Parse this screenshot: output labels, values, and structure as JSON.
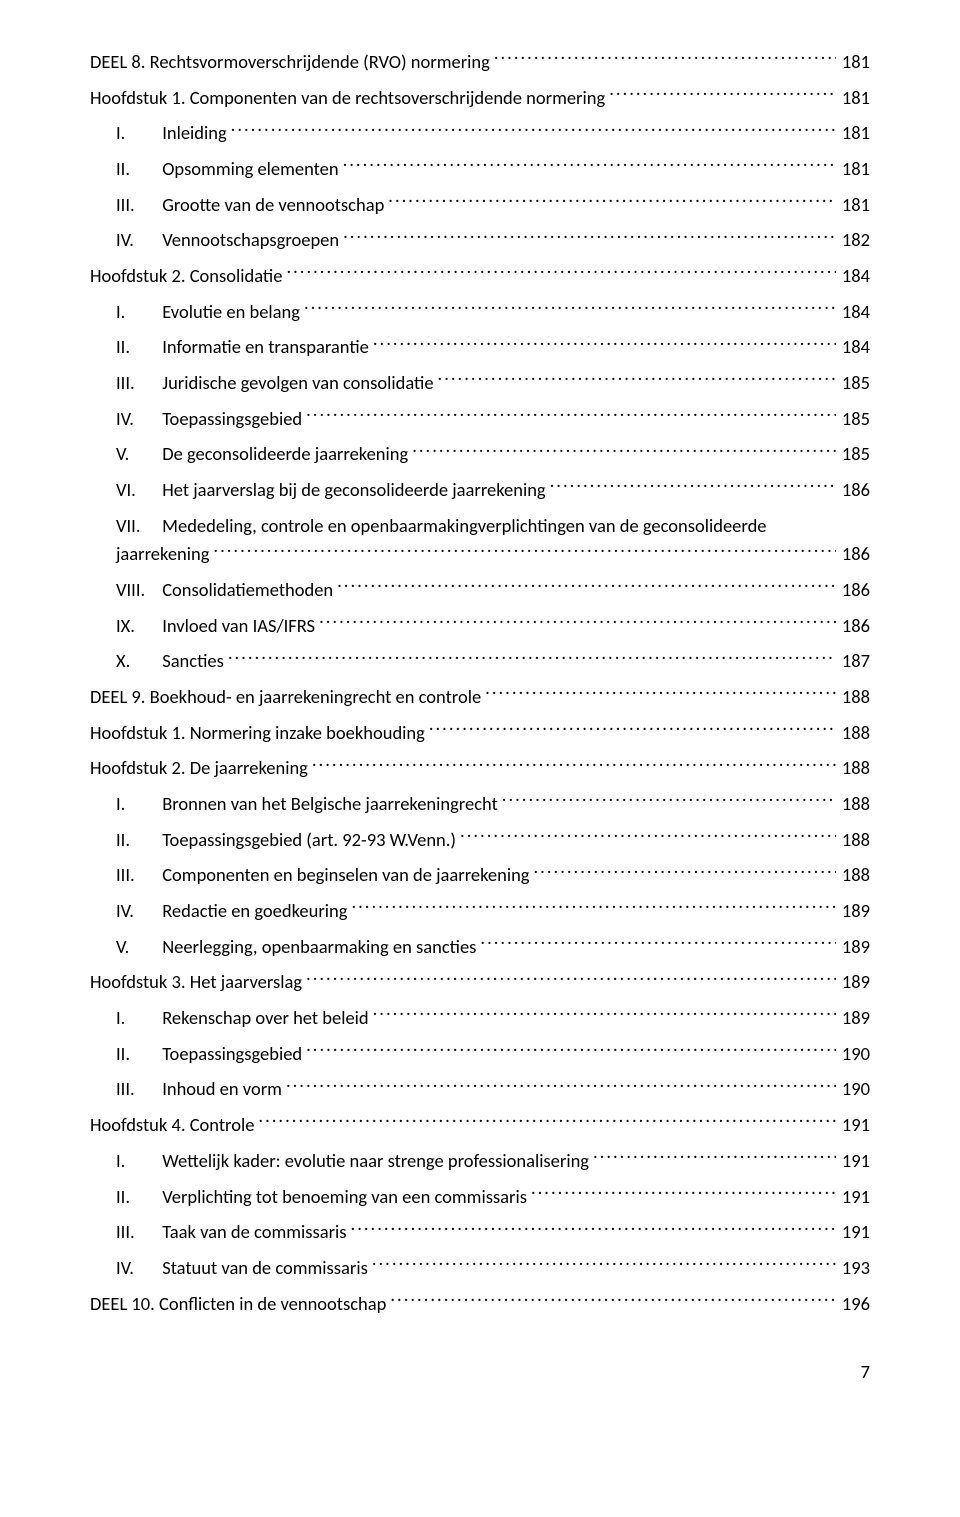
{
  "colors": {
    "text": "#000000",
    "background": "#ffffff"
  },
  "typography": {
    "font_family": "Calibri",
    "font_size_pt": 11,
    "line_spacing": 1.55
  },
  "page_number": "7",
  "entries": [
    {
      "level": 0,
      "prefix": "",
      "text": "DEEL 8. Rechtsvormoverschrijdende (RVO) normering",
      "page": "181"
    },
    {
      "level": 1,
      "prefix": "",
      "text": "Hoofdstuk 1. Componenten van de rechtsoverschrijdende normering",
      "page": "181"
    },
    {
      "level": 2,
      "prefix": "I.",
      "text": "Inleiding",
      "page": "181"
    },
    {
      "level": 2,
      "prefix": "II.",
      "text": "Opsomming elementen",
      "page": "181"
    },
    {
      "level": 2,
      "prefix": "III.",
      "text": "Grootte van de vennootschap",
      "page": "181"
    },
    {
      "level": 2,
      "prefix": "IV.",
      "text": "Vennootschapsgroepen",
      "page": "182"
    },
    {
      "level": 1,
      "prefix": "",
      "text": "Hoofdstuk 2. Consolidatie",
      "page": "184"
    },
    {
      "level": 2,
      "prefix": "I.",
      "text": "Evolutie en belang",
      "page": "184"
    },
    {
      "level": 2,
      "prefix": "II.",
      "text": "Informatie en transparantie",
      "page": "184"
    },
    {
      "level": 2,
      "prefix": "III.",
      "text": "Juridische gevolgen van consolidatie",
      "page": "185"
    },
    {
      "level": 2,
      "prefix": "IV.",
      "text": "Toepassingsgebied",
      "page": "185"
    },
    {
      "level": 2,
      "prefix": "V.",
      "text": "De geconsolideerde jaarrekening",
      "page": "185"
    },
    {
      "level": 2,
      "prefix": "VI.",
      "text": "Het jaarverslag bij de geconsolideerde jaarrekening",
      "page": "186"
    },
    {
      "level": 2,
      "prefix": "VII.",
      "text": "Mededeling, controle en openbaarmakingverplichtingen van de geconsolideerde jaarrekening",
      "page": "186",
      "wrap": true
    },
    {
      "level": 2,
      "prefix": "VIII.",
      "text": "Consolidatiemethoden",
      "page": "186"
    },
    {
      "level": 2,
      "prefix": "IX.",
      "text": "Invloed van IAS/IFRS",
      "page": "186"
    },
    {
      "level": 2,
      "prefix": "X.",
      "text": "Sancties",
      "page": "187"
    },
    {
      "level": 0,
      "prefix": "",
      "text": "DEEL 9. Boekhoud- en jaarrekeningrecht en controle",
      "page": "188"
    },
    {
      "level": 1,
      "prefix": "",
      "text": "Hoofdstuk 1. Normering inzake boekhouding",
      "page": "188"
    },
    {
      "level": 1,
      "prefix": "",
      "text": "Hoofdstuk 2. De jaarrekening",
      "page": "188"
    },
    {
      "level": 2,
      "prefix": "I.",
      "text": "Bronnen van het Belgische jaarrekeningrecht",
      "page": "188"
    },
    {
      "level": 2,
      "prefix": "II.",
      "text": "Toepassingsgebied (art. 92-93 W.Venn.)",
      "page": "188"
    },
    {
      "level": 2,
      "prefix": "III.",
      "text": "Componenten en beginselen van de jaarrekening",
      "page": "188"
    },
    {
      "level": 2,
      "prefix": "IV.",
      "text": "Redactie en goedkeuring",
      "page": "189"
    },
    {
      "level": 2,
      "prefix": "V.",
      "text": "Neerlegging, openbaarmaking en sancties",
      "page": "189"
    },
    {
      "level": 1,
      "prefix": "",
      "text": "Hoofdstuk 3. Het jaarverslag",
      "page": "189"
    },
    {
      "level": 2,
      "prefix": "I.",
      "text": "Rekenschap over het beleid",
      "page": "189"
    },
    {
      "level": 2,
      "prefix": "II.",
      "text": "Toepassingsgebied",
      "page": "190"
    },
    {
      "level": 2,
      "prefix": "III.",
      "text": "Inhoud en vorm",
      "page": "190"
    },
    {
      "level": 1,
      "prefix": "",
      "text": "Hoofdstuk 4. Controle",
      "page": "191"
    },
    {
      "level": 2,
      "prefix": "I.",
      "text": "Wettelijk kader: evolutie naar strenge professionalisering",
      "page": "191"
    },
    {
      "level": 2,
      "prefix": "II.",
      "text": "Verplichting tot benoeming van een commissaris",
      "page": "191"
    },
    {
      "level": 2,
      "prefix": "III.",
      "text": "Taak van de commissaris",
      "page": "191"
    },
    {
      "level": 2,
      "prefix": "IV.",
      "text": "Statuut van de commissaris",
      "page": "193"
    },
    {
      "level": 0,
      "prefix": "",
      "text": "DEEL 10. Conflicten in de vennootschap",
      "page": "196"
    }
  ]
}
